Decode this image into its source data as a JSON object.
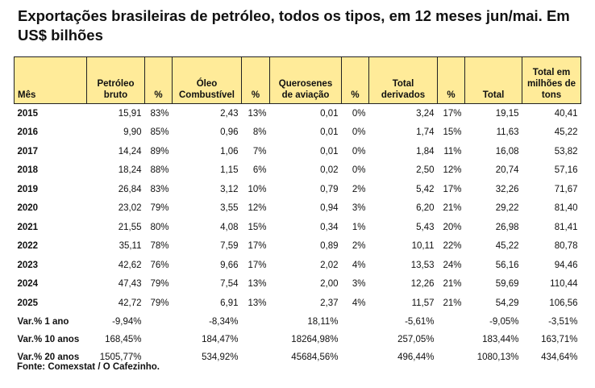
{
  "title": "Exportações brasileiras de petróleo, todos os tipos, em 12 meses jun/mai. Em US$ bilhões",
  "headers": [
    "Mês",
    "Petróleo bruto",
    "%",
    "Óleo Combustível",
    "%",
    "Querosenes de aviação",
    "%",
    "Total derivados",
    "%",
    "Total",
    "Total em milhões de tons"
  ],
  "rows": [
    [
      "2015",
      "15,91",
      "83%",
      "2,43",
      "13%",
      "0,01",
      "0%",
      "3,24",
      "17%",
      "19,15",
      "40,41"
    ],
    [
      "2016",
      "9,90",
      "85%",
      "0,96",
      "8%",
      "0,01",
      "0%",
      "1,74",
      "15%",
      "11,63",
      "45,22"
    ],
    [
      "2017",
      "14,24",
      "89%",
      "1,06",
      "7%",
      "0,01",
      "0%",
      "1,84",
      "11%",
      "16,08",
      "53,82"
    ],
    [
      "2018",
      "18,24",
      "88%",
      "1,15",
      "6%",
      "0,02",
      "0%",
      "2,50",
      "12%",
      "20,74",
      "57,16"
    ],
    [
      "2019",
      "26,84",
      "83%",
      "3,12",
      "10%",
      "0,79",
      "2%",
      "5,42",
      "17%",
      "32,26",
      "71,67"
    ],
    [
      "2020",
      "23,02",
      "79%",
      "3,55",
      "12%",
      "0,94",
      "3%",
      "6,20",
      "21%",
      "29,22",
      "81,40"
    ],
    [
      "2021",
      "21,55",
      "80%",
      "4,08",
      "15%",
      "0,34",
      "1%",
      "5,43",
      "20%",
      "26,98",
      "81,41"
    ],
    [
      "2022",
      "35,11",
      "78%",
      "7,59",
      "17%",
      "0,89",
      "2%",
      "10,11",
      "22%",
      "45,22",
      "80,78"
    ],
    [
      "2023",
      "42,62",
      "76%",
      "9,66",
      "17%",
      "2,02",
      "4%",
      "13,53",
      "24%",
      "56,16",
      "94,46"
    ],
    [
      "2024",
      "47,43",
      "79%",
      "7,54",
      "13%",
      "2,00",
      "3%",
      "12,26",
      "21%",
      "59,69",
      "110,44"
    ],
    [
      "2025",
      "42,72",
      "79%",
      "6,91",
      "13%",
      "2,37",
      "4%",
      "11,57",
      "21%",
      "54,29",
      "106,56"
    ]
  ],
  "var_rows": [
    [
      "Var.% 1 ano",
      "-9,94%",
      "",
      "-8,34%",
      "",
      "18,11%",
      "",
      "-5,61%",
      "",
      "-9,05%",
      "-3,51%"
    ],
    [
      "Var.% 10 anos",
      "168,45%",
      "",
      "184,47%",
      "",
      "18264,98%",
      "",
      "257,05%",
      "",
      "183,44%",
      "163,71%"
    ],
    [
      "Var.% 20 anos",
      "1505,77%",
      "",
      "534,92%",
      "",
      "45684,56%",
      "",
      "496,44%",
      "",
      "1080,13%",
      "434,64%"
    ]
  ],
  "source": "Fonte: Comexstat / O Cafezinho.",
  "colors": {
    "header_bg": "#ffeb99",
    "border": "#222222"
  }
}
